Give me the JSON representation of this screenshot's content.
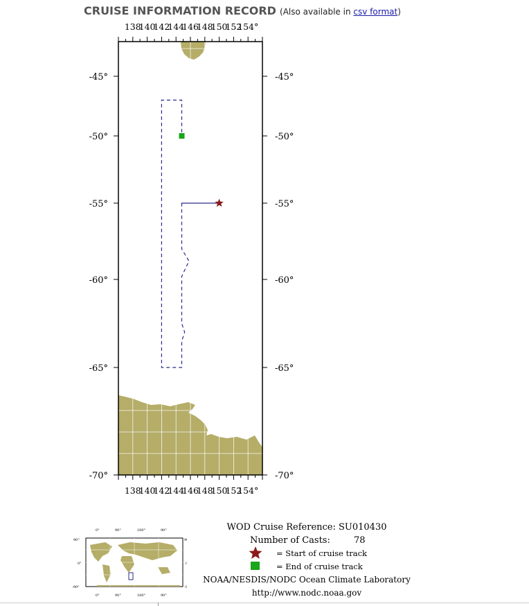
{
  "header": {
    "title": "CRUISE INFORMATION RECORD",
    "also_prefix": "(Also available in ",
    "csv_link": "csv format",
    "also_suffix": ")"
  },
  "map": {
    "lon_ticks": [
      "138",
      "140",
      "142",
      "144",
      "146",
      "148",
      "150",
      "152",
      "154°"
    ],
    "lat_labels": [
      "-45°",
      "-50°",
      "-55°",
      "-60°",
      "-65°",
      "-70°"
    ],
    "extent": {
      "lon_min": 136,
      "lon_max": 156,
      "lat_min": -70,
      "lat_max": -42.5
    },
    "track": [
      [
        144.8,
        -55.0
      ],
      [
        146.0,
        -55.0
      ],
      [
        148.0,
        -55.0
      ],
      [
        150.0,
        -55.0
      ],
      [
        144.8,
        -55.0
      ],
      [
        144.8,
        -58.0
      ],
      [
        145.8,
        -58.8
      ],
      [
        144.8,
        -59.8
      ],
      [
        144.8,
        -62.5
      ],
      [
        145.2,
        -63.0
      ],
      [
        144.8,
        -63.5
      ],
      [
        144.8,
        -65.0
      ],
      [
        142.0,
        -65.0
      ],
      [
        142.0,
        -60.0
      ],
      [
        142.0,
        -55.0
      ],
      [
        142.0,
        -50.0
      ],
      [
        142.0,
        -47.0
      ],
      [
        144.8,
        -47.0
      ],
      [
        144.8,
        -50.0
      ]
    ],
    "start": {
      "lon": 150.0,
      "lat": -55.0
    },
    "end": {
      "lon": 144.8,
      "lat": -50.0
    },
    "land_color": "#b5ad68",
    "track_color": "#2a2a8a",
    "start_color": "#8b1a1a",
    "end_color": "#1aa51a"
  },
  "legend": {
    "reference": "WOD Cruise Reference: SU010430",
    "casts_label": "Number of Casts:",
    "casts_value": "78",
    "start_text": "= Start of cruise track",
    "end_text": "= End of cruise track",
    "lab": "NOAA/NESDIS/NODC Ocean Climate Laboratory",
    "url": "http://www.nodc.noaa.gov"
  }
}
